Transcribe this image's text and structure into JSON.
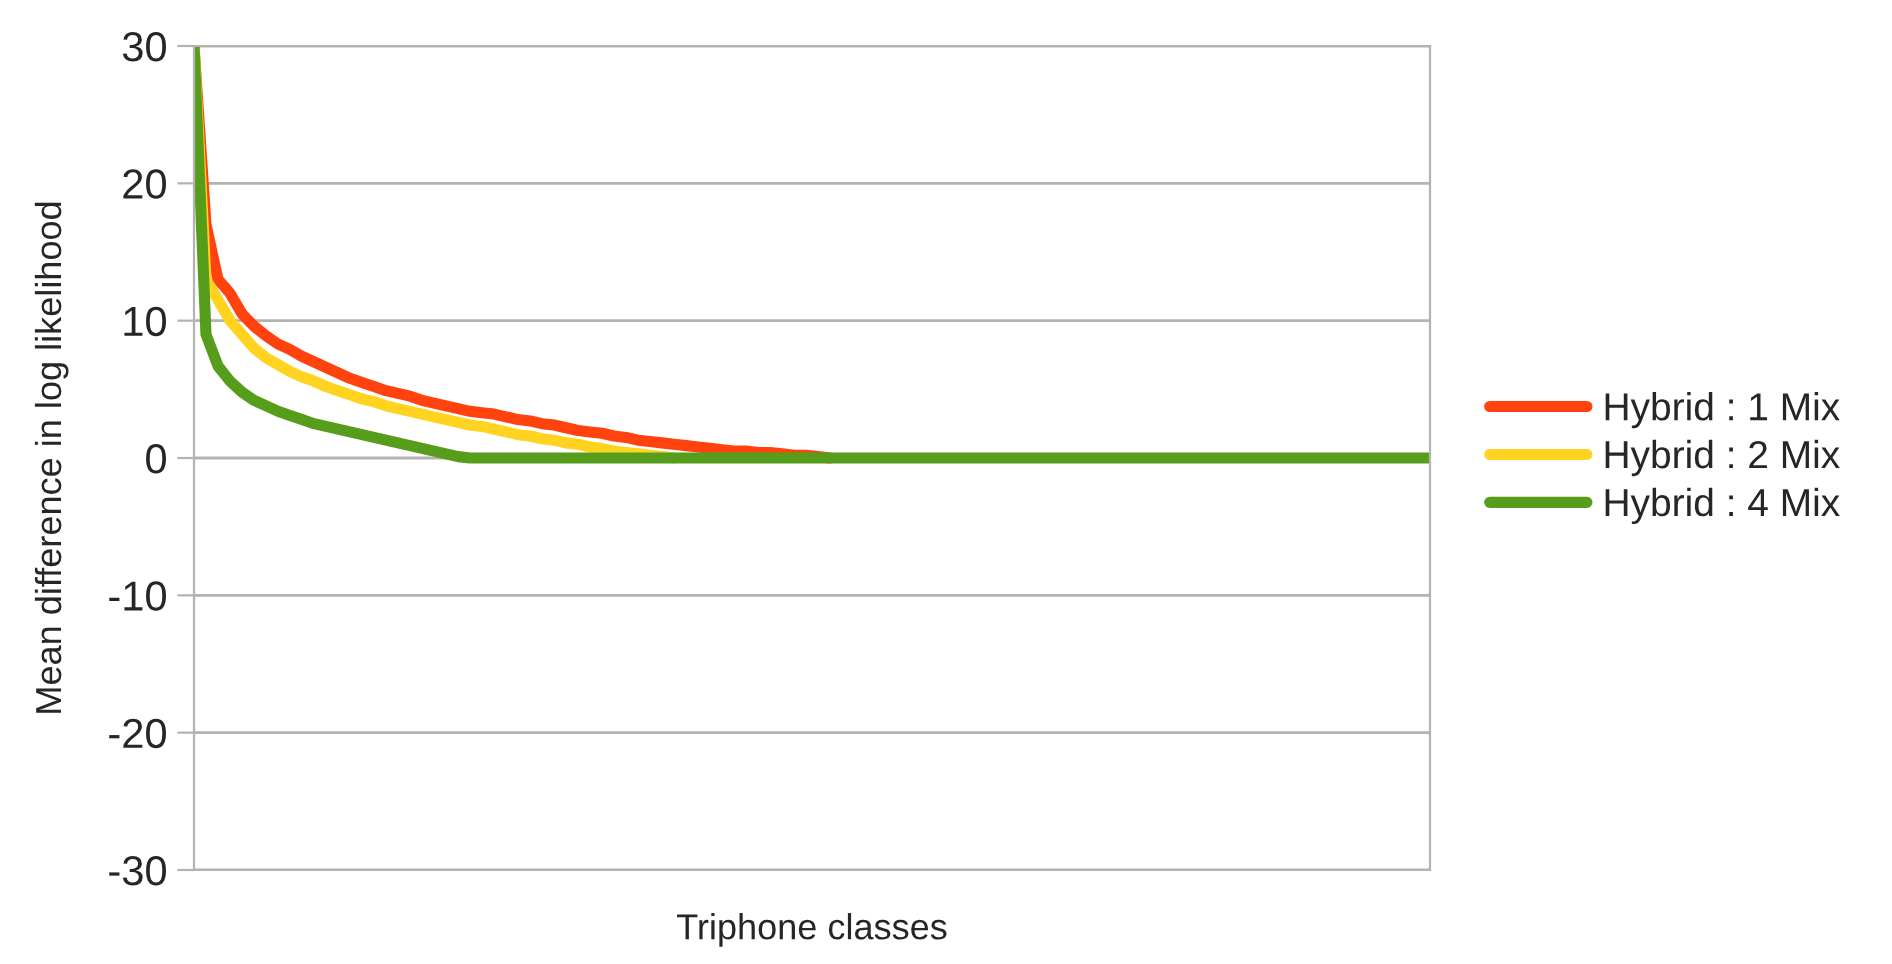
{
  "chart_data": {
    "type": "line",
    "xlabel": "Triphone classes",
    "ylabel": "Mean difference in log likelihood",
    "categories": [
      null,
      null,
      null,
      null,
      null,
      null,
      null,
      null,
      null,
      null,
      null,
      null,
      null,
      null,
      null,
      null,
      null,
      null,
      null,
      null,
      null,
      null,
      null,
      null,
      null,
      null,
      null,
      null,
      null,
      null,
      null,
      null,
      null,
      null,
      null,
      null,
      null,
      null,
      null,
      null,
      null,
      null,
      null,
      null,
      null,
      null,
      null,
      null,
      null,
      null,
      null,
      null,
      null,
      null,
      null,
      null,
      null,
      null,
      null,
      null,
      null,
      null,
      null,
      null,
      null,
      null,
      null,
      null,
      null,
      null,
      null,
      null,
      null,
      null,
      null,
      null,
      null,
      null,
      null,
      null,
      null,
      null,
      null,
      null,
      null,
      null,
      null,
      null,
      null,
      null,
      null,
      null,
      null,
      null,
      null,
      null,
      null,
      null,
      null,
      null,
      null,
      null,
      null,
      null
    ],
    "series": [
      {
        "name": "Hybrid : 1 Mix",
        "color": "#ff420e",
        "values": [
          30,
          17,
          13,
          12,
          10.5,
          9.6,
          8.9,
          8.3,
          7.9,
          7.4,
          7.0,
          6.6,
          6.2,
          5.8,
          5.5,
          5.2,
          4.9,
          4.7,
          4.5,
          4.2,
          4.0,
          3.8,
          3.6,
          3.4,
          3.3,
          3.2,
          3.0,
          2.8,
          2.7,
          2.5,
          2.4,
          2.2,
          2.0,
          1.9,
          1.8,
          1.6,
          1.5,
          1.3,
          1.2,
          1.1,
          1.0,
          0.9,
          0.8,
          0.7,
          0.6,
          0.5,
          0.5,
          0.4,
          0.4,
          0.3,
          0.2,
          0.2,
          0.1,
          0,
          null,
          null,
          null,
          null,
          null,
          null,
          null,
          null,
          null,
          null,
          null,
          null,
          null,
          null,
          null,
          null,
          null,
          null,
          null,
          null,
          null,
          null,
          null,
          null,
          null,
          null,
          null,
          null,
          null,
          null,
          null,
          null,
          null,
          null,
          null,
          null,
          null,
          null,
          null,
          null,
          null,
          null,
          null,
          null,
          null,
          null,
          null,
          null,
          null,
          null
        ]
      },
      {
        "name": "Hybrid : 2 Mix",
        "color": "#ffd320",
        "values": [
          30,
          13,
          11.5,
          10,
          9.0,
          8.0,
          7.3,
          6.8,
          6.3,
          5.9,
          5.6,
          5.2,
          4.9,
          4.6,
          4.3,
          4.1,
          3.8,
          3.6,
          3.4,
          3.2,
          3.0,
          2.8,
          2.6,
          2.4,
          2.3,
          2.1,
          1.9,
          1.7,
          1.6,
          1.4,
          1.3,
          1.1,
          1.0,
          0.8,
          0.7,
          0.5,
          0.4,
          0.3,
          0.2,
          0.1,
          0,
          null,
          null,
          null,
          null,
          null,
          null,
          null,
          null,
          null,
          null,
          null,
          null,
          null,
          null,
          null,
          null,
          null,
          null,
          null,
          null,
          null,
          null,
          null,
          null,
          null,
          null,
          null,
          null,
          null,
          null,
          null,
          null,
          null,
          null,
          null,
          null,
          null,
          null,
          null,
          null,
          null,
          null,
          null,
          null,
          null,
          null,
          null,
          null,
          null,
          null,
          null,
          null,
          null,
          null,
          null,
          null,
          null,
          null,
          null,
          null,
          null,
          null,
          null
        ]
      },
      {
        "name": "Hybrid : 4 Mix",
        "color": "#579d1c",
        "values": [
          30,
          9,
          6.7,
          5.6,
          4.8,
          4.2,
          3.8,
          3.4,
          3.1,
          2.8,
          2.5,
          2.3,
          2.1,
          1.9,
          1.7,
          1.5,
          1.3,
          1.1,
          0.9,
          0.7,
          0.5,
          0.3,
          0.1,
          0,
          0,
          0,
          0,
          0,
          0,
          0,
          0,
          0,
          0,
          0,
          0,
          0,
          0,
          0,
          0,
          0,
          0,
          0,
          0,
          0,
          0,
          0,
          0,
          0,
          0,
          0,
          0,
          0,
          0,
          0,
          0,
          0,
          0,
          0,
          0,
          0,
          0,
          0,
          0,
          0,
          0,
          0,
          0,
          0,
          0,
          0,
          0,
          0,
          0,
          0,
          0,
          0,
          0,
          0,
          0,
          0,
          0,
          0,
          0,
          0,
          0,
          0,
          0,
          0,
          0,
          0,
          0,
          0,
          0,
          0,
          0,
          0,
          0,
          0,
          0,
          0,
          0,
          0,
          0,
          0
        ]
      }
    ],
    "ylim": [
      -30,
      30
    ],
    "yticks": [
      -30,
      -20,
      -10,
      0,
      10,
      20,
      30
    ],
    "grid": "y",
    "legend": "right",
    "marker": "none",
    "line_style": "solid"
  }
}
